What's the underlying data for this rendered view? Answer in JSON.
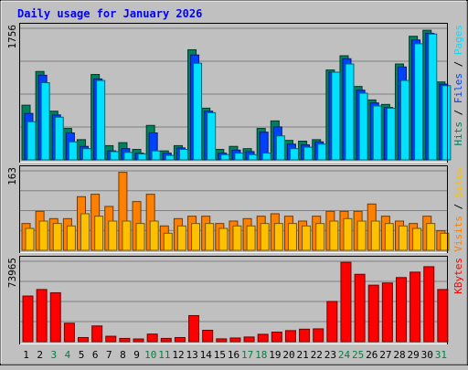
{
  "chart_data": [
    {
      "type": "bar",
      "title": "Daily usage for January 2026",
      "max_label": "1756",
      "ylim": [
        0,
        1756
      ],
      "legend": [
        {
          "name": "Pages",
          "color": "#00e0ff"
        },
        {
          "name": "Files",
          "color": "#0040ff"
        },
        {
          "name": "Hits",
          "color": "#00805c"
        }
      ],
      "categories": [
        "1",
        "2",
        "3",
        "4",
        "5",
        "6",
        "7",
        "8",
        "9",
        "10",
        "11",
        "12",
        "13",
        "14",
        "15",
        "16",
        "17",
        "18",
        "19",
        "20",
        "21",
        "22",
        "23",
        "24",
        "25",
        "26",
        "27",
        "28",
        "29",
        "30",
        "31"
      ],
      "series": [
        {
          "name": "Hits",
          "color": "#00805c",
          "values": [
            730,
            1180,
            650,
            420,
            270,
            1140,
            190,
            230,
            140,
            460,
            120,
            190,
            1470,
            690,
            140,
            180,
            150,
            420,
            520,
            260,
            250,
            270,
            1200,
            1390,
            980,
            800,
            740,
            1280,
            1650,
            1730,
            1040
          ]
        },
        {
          "name": "Files",
          "color": "#0040ff",
          "values": [
            620,
            1130,
            600,
            360,
            180,
            1080,
            120,
            150,
            90,
            360,
            90,
            160,
            1400,
            650,
            90,
            130,
            110,
            370,
            440,
            210,
            200,
            240,
            1170,
            1350,
            930,
            760,
            700,
            1240,
            1600,
            1690,
            1010
          ]
        },
        {
          "name": "Pages",
          "color": "#00e0ff",
          "values": [
            510,
            1030,
            570,
            240,
            150,
            1060,
            110,
            100,
            80,
            120,
            60,
            140,
            1290,
            630,
            70,
            90,
            70,
            90,
            320,
            150,
            170,
            210,
            1170,
            1280,
            890,
            720,
            690,
            1060,
            1550,
            1680,
            990
          ]
        }
      ]
    },
    {
      "type": "bar",
      "max_label": "163",
      "ylim": [
        0,
        163
      ],
      "legend": [
        {
          "name": "Sites",
          "color": "#ffc000"
        },
        {
          "name": "Visits",
          "color": "#ff8000"
        }
      ],
      "categories": [
        "1",
        "2",
        "3",
        "4",
        "5",
        "6",
        "7",
        "8",
        "9",
        "10",
        "11",
        "12",
        "13",
        "14",
        "15",
        "16",
        "17",
        "18",
        "19",
        "20",
        "21",
        "22",
        "23",
        "24",
        "25",
        "26",
        "27",
        "28",
        "29",
        "30",
        "31"
      ],
      "series": [
        {
          "name": "Visits",
          "color": "#ff8000",
          "values": [
            55,
            80,
            65,
            65,
            110,
            115,
            90,
            160,
            100,
            115,
            50,
            65,
            70,
            70,
            55,
            60,
            65,
            70,
            75,
            70,
            60,
            70,
            80,
            80,
            80,
            95,
            70,
            60,
            55,
            70,
            40
          ]
        },
        {
          "name": "Sites",
          "color": "#ffc000",
          "values": [
            45,
            60,
            55,
            50,
            75,
            70,
            60,
            60,
            55,
            60,
            35,
            50,
            55,
            55,
            45,
            50,
            50,
            55,
            55,
            55,
            50,
            55,
            60,
            65,
            60,
            60,
            55,
            50,
            45,
            55,
            35
          ]
        }
      ]
    },
    {
      "type": "bar",
      "max_label": "73965",
      "ylim": [
        0,
        73965
      ],
      "legend": [
        {
          "name": "KBytes",
          "color": "#ff0000"
        }
      ],
      "categories": [
        "1",
        "2",
        "3",
        "4",
        "5",
        "6",
        "7",
        "8",
        "9",
        "10",
        "11",
        "12",
        "13",
        "14",
        "15",
        "16",
        "17",
        "18",
        "19",
        "20",
        "21",
        "22",
        "23",
        "24",
        "25",
        "26",
        "27",
        "28",
        "29",
        "30",
        "31"
      ],
      "weekend_days": [
        "3",
        "4",
        "10",
        "11",
        "17",
        "18",
        "24",
        "25",
        "31"
      ],
      "series": [
        {
          "name": "KBytes",
          "color": "#ff0000",
          "values": [
            42000,
            48000,
            45000,
            17000,
            3800,
            14500,
            5000,
            3000,
            2500,
            7000,
            3000,
            3800,
            24000,
            10500,
            2600,
            3400,
            4300,
            6800,
            8800,
            10200,
            11500,
            11800,
            37000,
            73000,
            62000,
            52000,
            54000,
            59000,
            64000,
            69000,
            48000
          ]
        }
      ]
    }
  ]
}
